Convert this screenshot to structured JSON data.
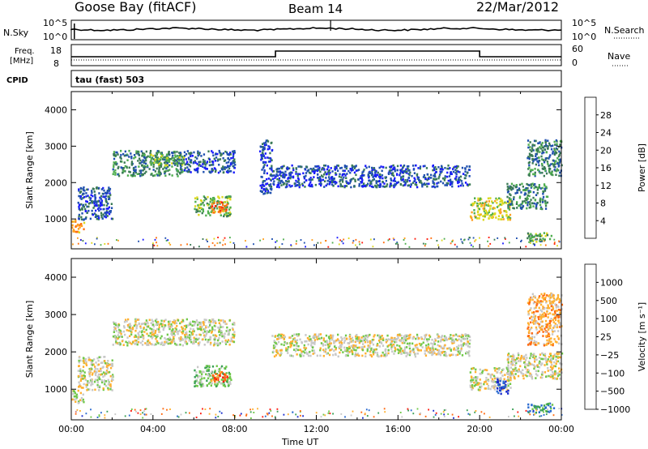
{
  "header": {
    "station": "Goose Bay (fitACF)",
    "beam": "Beam 14",
    "date": "22/Mar/2012"
  },
  "top_panels": {
    "nsky_label": "N.Sky",
    "nsky_hi": "10^5",
    "nsky_lo": "10^0",
    "nsearch_label": "N.Search",
    "nsearch_hi": "10^5",
    "nsearch_lo": "10^0",
    "freq_label_1": "Freq.",
    "freq_label_2": "[MHz]",
    "freq_hi": "18",
    "freq_lo": "8",
    "nave_label": "Nave",
    "nave_hi": "60",
    "nave_lo": "0",
    "cpid_label": "CPID",
    "cpid_value": "tau (fast) 503"
  },
  "chart_data": [
    {
      "type": "heatmap",
      "panel": "power",
      "ylabel": "Slant Range [km]",
      "xlabel": "",
      "ylim": [
        180,
        4500
      ],
      "yticks": [
        "1000",
        "2000",
        "3000",
        "4000"
      ],
      "xlim": [
        "00:00",
        "24:00"
      ],
      "colorbar": {
        "label": "Power [dB]",
        "ticks": [
          "4",
          "8",
          "12",
          "16",
          "20",
          "24",
          "28"
        ],
        "colors": [
          "#1a1aff",
          "#2050b0",
          "#3a7a55",
          "#4fae4f",
          "#ddd820",
          "#ffa020",
          "#ff7010",
          "#ff2010"
        ]
      },
      "regions": [
        {
          "t0": 0.0,
          "t1": 0.6,
          "r0": 650,
          "r1": 1000,
          "level": 5
        },
        {
          "t0": 0.3,
          "t1": 2.0,
          "r0": 1000,
          "r1": 1900,
          "level": 1
        },
        {
          "t0": 2.0,
          "t1": 5.5,
          "r0": 2200,
          "r1": 2900,
          "level": 2
        },
        {
          "t0": 3.8,
          "t1": 5.5,
          "r0": 2500,
          "r1": 2800,
          "level": 3
        },
        {
          "t0": 5.5,
          "t1": 8.0,
          "r0": 2300,
          "r1": 2900,
          "level": 1
        },
        {
          "t0": 6.0,
          "t1": 7.8,
          "r0": 1100,
          "r1": 1650,
          "level": 3
        },
        {
          "t0": 6.8,
          "t1": 7.6,
          "r0": 1200,
          "r1": 1500,
          "level": 6
        },
        {
          "t0": 9.2,
          "t1": 9.8,
          "r0": 1700,
          "r1": 3200,
          "level": 1
        },
        {
          "t0": 9.8,
          "t1": 19.5,
          "r0": 1900,
          "r1": 2500,
          "level": 1
        },
        {
          "t0": 19.5,
          "t1": 21.5,
          "r0": 1000,
          "r1": 1600,
          "level": 4
        },
        {
          "t0": 21.3,
          "t1": 23.3,
          "r0": 1300,
          "r1": 2000,
          "level": 2
        },
        {
          "t0": 22.3,
          "t1": 23.6,
          "r0": 400,
          "r1": 650,
          "level": 3
        },
        {
          "t0": 22.3,
          "t1": 24.0,
          "r0": 2200,
          "r1": 3200,
          "level": 2
        }
      ]
    },
    {
      "type": "heatmap",
      "panel": "velocity",
      "ylabel": "Slant Range [km]",
      "xlabel": "Time UT",
      "ylim": [
        180,
        4500
      ],
      "yticks": [
        "1000",
        "2000",
        "3000",
        "4000"
      ],
      "xticks": [
        "00:00",
        "04:00",
        "08:00",
        "12:00",
        "16:00",
        "20:00",
        "00:00"
      ],
      "xlim": [
        "00:00",
        "24:00"
      ],
      "colorbar": {
        "label": "Velocity [m s⁻¹]",
        "ticks": [
          "1000",
          "500",
          "100",
          "25",
          "−25",
          "−100",
          "−500",
          "−1000"
        ],
        "colors": [
          "#1a2ccc",
          "#2a6ad0",
          "#3aa055",
          "#70c84a",
          "#c8c8c8",
          "#ffb030",
          "#ff6a10",
          "#ff1a10"
        ]
      },
      "regions": [
        {
          "t0": 0.0,
          "t1": 0.6,
          "r0": 650,
          "r1": 1000,
          "level": 4
        },
        {
          "t0": 0.3,
          "t1": 2.0,
          "r0": 1000,
          "r1": 1900,
          "level": 4
        },
        {
          "t0": 2.0,
          "t1": 8.0,
          "r0": 2200,
          "r1": 2900,
          "level": 4
        },
        {
          "t0": 6.0,
          "t1": 7.8,
          "r0": 1100,
          "r1": 1650,
          "level": 3
        },
        {
          "t0": 6.8,
          "t1": 7.6,
          "r0": 1200,
          "r1": 1500,
          "level": 6
        },
        {
          "t0": 9.8,
          "t1": 19.5,
          "r0": 1900,
          "r1": 2500,
          "level": 4
        },
        {
          "t0": 19.5,
          "t1": 21.5,
          "r0": 1000,
          "r1": 1600,
          "level": 4
        },
        {
          "t0": 20.8,
          "t1": 21.4,
          "r0": 900,
          "r1": 1300,
          "level": 0
        },
        {
          "t0": 21.3,
          "t1": 24.0,
          "r0": 1300,
          "r1": 2000,
          "level": 4
        },
        {
          "t0": 22.3,
          "t1": 23.6,
          "r0": 400,
          "r1": 650,
          "level": 2
        },
        {
          "t0": 22.3,
          "t1": 24.0,
          "r0": 2200,
          "r1": 3600,
          "level": 5
        }
      ]
    }
  ]
}
